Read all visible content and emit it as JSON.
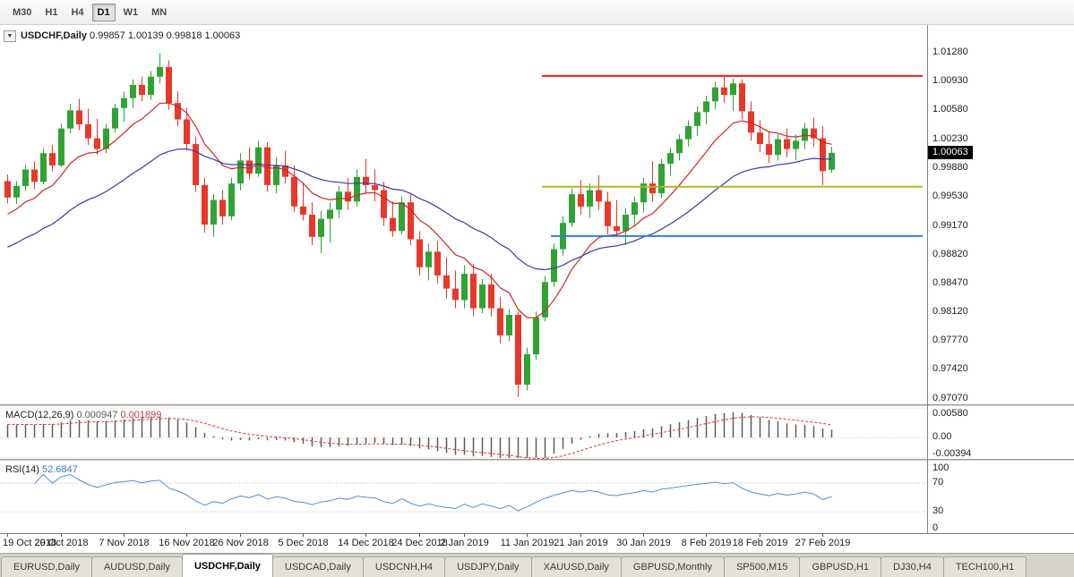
{
  "toolbar": {
    "timeframes": [
      {
        "label": "M30",
        "active": false
      },
      {
        "label": "H1",
        "active": false
      },
      {
        "label": "H4",
        "active": false
      },
      {
        "label": "D1",
        "active": true
      },
      {
        "label": "W1",
        "active": false
      },
      {
        "label": "MN",
        "active": false
      }
    ]
  },
  "bottom_tabs": [
    {
      "label": "EURUSD,Daily",
      "active": false
    },
    {
      "label": "AUDUSD,Daily",
      "active": false
    },
    {
      "label": "USDCHF,Daily",
      "active": true
    },
    {
      "label": "USDCAD,Daily",
      "active": false
    },
    {
      "label": "USDCNH,H4",
      "active": false
    },
    {
      "label": "USDJPY,Daily",
      "active": false
    },
    {
      "label": "XAUUSD,Daily",
      "active": false
    },
    {
      "label": "GBPUSD,Monthly",
      "active": false
    },
    {
      "label": "SP500,M15",
      "active": false
    },
    {
      "label": "GBPUSD,H1",
      "active": false
    },
    {
      "label": "DJ30,H4",
      "active": false
    },
    {
      "label": "TECH100,H1",
      "active": false
    }
  ],
  "chart_data": {
    "type": "candlestick",
    "symbol": "USDCHF",
    "timeframe": "Daily",
    "title": "USDCHF,Daily",
    "ohlc_text": "0.99857 1.00139 0.99818 1.00063",
    "current_price": 1.00063,
    "price_axis": [
      1.0128,
      1.0093,
      1.0058,
      1.0023,
      0.9988,
      0.9953,
      0.9917,
      0.9882,
      0.9847,
      0.9812,
      0.9777,
      0.9742,
      0.9707
    ],
    "candles": [
      [
        0.9972,
        0.998,
        0.9945,
        0.9952
      ],
      [
        0.9952,
        0.9972,
        0.9944,
        0.9966
      ],
      [
        0.9966,
        0.9992,
        0.996,
        0.9986
      ],
      [
        0.9986,
        0.9996,
        0.9962,
        0.9971
      ],
      [
        0.9971,
        1.0012,
        0.9968,
        1.0006
      ],
      [
        1.0006,
        1.0016,
        0.9984,
        0.9991
      ],
      [
        0.9991,
        1.0042,
        0.9989,
        1.0036
      ],
      [
        1.0036,
        1.0066,
        1.003,
        1.0058
      ],
      [
        1.0058,
        1.0072,
        1.0034,
        1.0041
      ],
      [
        1.0041,
        1.006,
        1.0016,
        1.0024
      ],
      [
        1.0024,
        1.0048,
        1.0004,
        1.0011
      ],
      [
        1.0011,
        1.0041,
        1.0006,
        1.0036
      ],
      [
        1.0036,
        1.0066,
        1.0031,
        1.0061
      ],
      [
        1.0061,
        1.0081,
        1.0044,
        1.0073
      ],
      [
        1.0073,
        1.0096,
        1.0061,
        1.0089
      ],
      [
        1.0089,
        1.0099,
        1.0069,
        1.0077
      ],
      [
        1.0077,
        1.0106,
        1.0071,
        1.0099
      ],
      [
        1.0099,
        1.0128,
        1.0091,
        1.0111
      ],
      [
        1.0111,
        1.0119,
        1.0059,
        1.0067
      ],
      [
        1.0067,
        1.0081,
        1.0039,
        1.0047
      ],
      [
        1.0047,
        1.0061,
        1.0009,
        1.0017
      ],
      [
        1.0017,
        1.0026,
        0.9959,
        0.9967
      ],
      [
        0.9967,
        0.9976,
        0.9909,
        0.9919
      ],
      [
        0.9919,
        0.9956,
        0.9904,
        0.9949
      ],
      [
        0.9949,
        0.9961,
        0.9919,
        0.9929
      ],
      [
        0.9929,
        0.9976,
        0.9924,
        0.9969
      ],
      [
        0.9969,
        1.0006,
        0.9961,
        0.9997
      ],
      [
        0.9997,
        1.0013,
        0.9974,
        0.9981
      ],
      [
        0.9981,
        1.0021,
        0.9977,
        1.0013
      ],
      [
        1.0013,
        1.0019,
        0.9959,
        0.9967
      ],
      [
        0.9967,
        1.0001,
        0.9957,
        0.9991
      ],
      [
        0.9991,
        1.0009,
        0.9969,
        0.9977
      ],
      [
        0.9977,
        0.9991,
        0.9934,
        0.9941
      ],
      [
        0.9941,
        0.9969,
        0.9924,
        0.9931
      ],
      [
        0.9931,
        0.9946,
        0.9894,
        0.9904
      ],
      [
        0.9904,
        0.9936,
        0.9884,
        0.9926
      ],
      [
        0.9926,
        0.9946,
        0.9897,
        0.9937
      ],
      [
        0.9937,
        0.9966,
        0.9927,
        0.9959
      ],
      [
        0.9959,
        0.9976,
        0.9937,
        0.9947
      ],
      [
        0.9947,
        0.9986,
        0.9941,
        0.9977
      ],
      [
        0.9977,
        0.9999,
        0.9957,
        0.9967
      ],
      [
        0.9967,
        0.9986,
        0.9947,
        0.9961
      ],
      [
        0.9961,
        0.9971,
        0.9917,
        0.9927
      ],
      [
        0.9927,
        0.9947,
        0.9904,
        0.9911
      ],
      [
        0.9911,
        0.9953,
        0.9907,
        0.9946
      ],
      [
        0.9946,
        0.9956,
        0.9894,
        0.9901
      ],
      [
        0.9901,
        0.9911,
        0.9857,
        0.9867
      ],
      [
        0.9867,
        0.9896,
        0.9851,
        0.9886
      ],
      [
        0.9886,
        0.9899,
        0.9847,
        0.9857
      ],
      [
        0.9857,
        0.9879,
        0.9829,
        0.9841
      ],
      [
        0.9841,
        0.9863,
        0.9817,
        0.9827
      ],
      [
        0.9827,
        0.9869,
        0.9817,
        0.9859
      ],
      [
        0.9859,
        0.9871,
        0.9807,
        0.9817
      ],
      [
        0.9817,
        0.9853,
        0.9811,
        0.9846
      ],
      [
        0.9846,
        0.9859,
        0.9807,
        0.9817
      ],
      [
        0.9817,
        0.9831,
        0.9774,
        0.9784
      ],
      [
        0.9784,
        0.9816,
        0.9777,
        0.9809
      ],
      [
        0.9809,
        0.9813,
        0.9709,
        0.9724
      ],
      [
        0.9724,
        0.9769,
        0.9717,
        0.9761
      ],
      [
        0.9761,
        0.9813,
        0.9754,
        0.9806
      ],
      [
        0.9806,
        0.9856,
        0.9801,
        0.9849
      ],
      [
        0.9849,
        0.9896,
        0.9843,
        0.9889
      ],
      [
        0.9889,
        0.9929,
        0.9881,
        0.9921
      ],
      [
        0.9921,
        0.9963,
        0.9916,
        0.9956
      ],
      [
        0.9956,
        0.9973,
        0.9931,
        0.9941
      ],
      [
        0.9941,
        0.9969,
        0.9927,
        0.9961
      ],
      [
        0.9961,
        0.9979,
        0.9937,
        0.9947
      ],
      [
        0.9947,
        0.9959,
        0.9907,
        0.9917
      ],
      [
        0.9917,
        0.9949,
        0.9904,
        0.9911
      ],
      [
        0.9911,
        0.9939,
        0.9894,
        0.9931
      ],
      [
        0.9931,
        0.9953,
        0.9917,
        0.9946
      ],
      [
        0.9946,
        0.9976,
        0.9934,
        0.9969
      ],
      [
        0.9969,
        0.9996,
        0.9947,
        0.9957
      ],
      [
        0.9957,
        0.9999,
        0.9951,
        0.9993
      ],
      [
        0.9993,
        1.0013,
        0.9979,
        1.0006
      ],
      [
        1.0006,
        1.0029,
        0.9997,
        1.0023
      ],
      [
        1.0023,
        1.0046,
        1.0014,
        1.0039
      ],
      [
        1.0039,
        1.0063,
        1.0027,
        1.0056
      ],
      [
        1.0056,
        1.0076,
        1.0041,
        1.0069
      ],
      [
        1.0069,
        1.0093,
        1.0059,
        1.0086
      ],
      [
        1.0086,
        1.0099,
        1.0067,
        1.0077
      ],
      [
        1.0077,
        1.0097,
        1.0057,
        1.0091
      ],
      [
        1.0091,
        1.0096,
        1.0047,
        1.0057
      ],
      [
        1.0057,
        1.0069,
        1.0021,
        1.0031
      ],
      [
        1.0031,
        1.0046,
        1.0007,
        1.0017
      ],
      [
        1.0017,
        1.0033,
        0.9994,
        1.0004
      ],
      [
        1.0004,
        1.0029,
        0.9997,
        1.0023
      ],
      [
        1.0023,
        1.0036,
        1.0001,
        1.0011
      ],
      [
        1.0011,
        1.0029,
        0.9997,
        1.0021
      ],
      [
        1.0021,
        1.0043,
        1.0011,
        1.0036
      ],
      [
        1.0036,
        1.0049,
        1.0014,
        1.0024
      ],
      [
        1.0024,
        1.0039,
        0.9967,
        0.9984
      ],
      [
        0.99857,
        1.00139,
        0.99818,
        1.00063
      ]
    ],
    "date_ticks": [
      {
        "label": "19 Oct 2018",
        "index": 0
      },
      {
        "label": "29 Oct 2018",
        "index": 6
      },
      {
        "label": "7 Nov 2018",
        "index": 13
      },
      {
        "label": "16 Nov 2018",
        "index": 20
      },
      {
        "label": "26 Nov 2018",
        "index": 26
      },
      {
        "label": "5 Dec 2018",
        "index": 33
      },
      {
        "label": "14 Dec 2018",
        "index": 40
      },
      {
        "label": "24 Dec 2018",
        "index": 46
      },
      {
        "label": "2 Jan 2019",
        "index": 51
      },
      {
        "label": "11 Jan 2019",
        "index": 58
      },
      {
        "label": "21 Jan 2019",
        "index": 64
      },
      {
        "label": "30 Jan 2019",
        "index": 71
      },
      {
        "label": "8 Feb 2019",
        "index": 78
      },
      {
        "label": "18 Feb 2019",
        "index": 84
      },
      {
        "label": "27 Feb 2019",
        "index": 91
      }
    ],
    "levels": [
      {
        "name": "resistance-line-red",
        "price": 1.01,
        "color": "#ee1c1c",
        "from_index": 60
      },
      {
        "name": "support-line-olive",
        "price": 0.9965,
        "color": "#b2b626",
        "from_index": 60
      },
      {
        "name": "support-line-blue",
        "price": 0.9905,
        "color": "#2e7fd6",
        "from_index": 61
      }
    ],
    "moving_averages": [
      {
        "name": "ma-fast-red",
        "period": 10,
        "color": "#cf2525",
        "seed_offset": -0.0025
      },
      {
        "name": "ma-slow-navy",
        "period": 28,
        "color": "#3b3b9e",
        "seed_offset": -0.0065
      }
    ],
    "macd": {
      "label": "MACD(12,26,9)",
      "value_main": "0.000947",
      "value_signal": "0.001899",
      "params": {
        "fast": 12,
        "slow": 26,
        "signal": 9
      },
      "scale": [
        {
          "value": 0.0058,
          "label": "0.00580"
        },
        {
          "value": 0,
          "label": "0.00"
        },
        {
          "value": -0.00394,
          "label": "-0.00394"
        }
      ]
    },
    "rsi": {
      "label": "RSI(14)",
      "value": "52.6847",
      "period": 14,
      "levels": [
        70,
        30
      ],
      "scale": [
        {
          "value": 100,
          "label": "100"
        },
        {
          "value": 70,
          "label": "70"
        },
        {
          "value": 30,
          "label": "30"
        },
        {
          "value": 0,
          "label": "0"
        }
      ]
    },
    "colors": {
      "up": "#2fa333",
      "down": "#e8372b",
      "ma_fast": "#cf2525",
      "ma_slow": "#3b3b9e",
      "macd_histogram": "#5b5b5b",
      "macd_signal": "#e03434",
      "rsi_line": "#4f93ce",
      "badge_bg": "#000000",
      "axis_text": "#1c1c1c"
    }
  }
}
